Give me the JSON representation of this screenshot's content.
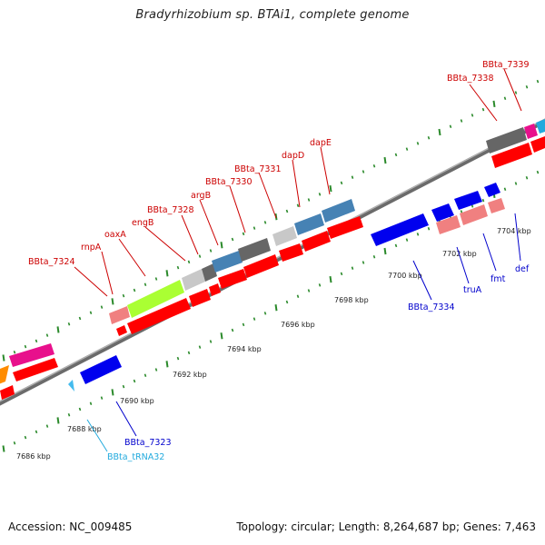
{
  "title": "Bradyrhizobium sp. BTAi1, complete genome",
  "footer": {
    "accession": "Accession: NC_009485",
    "summary": "Topology: circular; Length: 8,264,687 bp; Genes: 7,463"
  },
  "colors": {
    "forward_label": "#cc0000",
    "reverse_label": "#0000cc",
    "trna_label": "#22aadd",
    "cds": "#ff0000",
    "backbone": "#8a8a8a",
    "tick": "#2b8a2b"
  },
  "ticks": [
    {
      "kbp": 7686,
      "label": "7686 kbp"
    },
    {
      "kbp": 7688,
      "label": "7688 kbp"
    },
    {
      "kbp": 7690,
      "label": "7690 kbp"
    },
    {
      "kbp": 7692,
      "label": "7692 kbp"
    },
    {
      "kbp": 7694,
      "label": "7694 kbp"
    },
    {
      "kbp": 7696,
      "label": "7696 kbp"
    },
    {
      "kbp": 7698,
      "label": "7698 kbp"
    },
    {
      "kbp": 7700,
      "label": "7700 kbp"
    },
    {
      "kbp": 7702,
      "label": "7702 kbp"
    },
    {
      "kbp": 7704,
      "label": "7704 kbp"
    }
  ],
  "forward_labels": [
    "BBta_7324",
    "rnpA",
    "oaxA",
    "engB",
    "BBta_7328",
    "argB",
    "BBta_7330",
    "BBta_7331",
    "dapD",
    "dapE",
    "BBta_7338",
    "BBta_7339"
  ],
  "reverse_labels": [
    "BBta_tRNA32",
    "BBta_7323",
    "BBta_7334",
    "truA",
    "fmt",
    "def"
  ]
}
